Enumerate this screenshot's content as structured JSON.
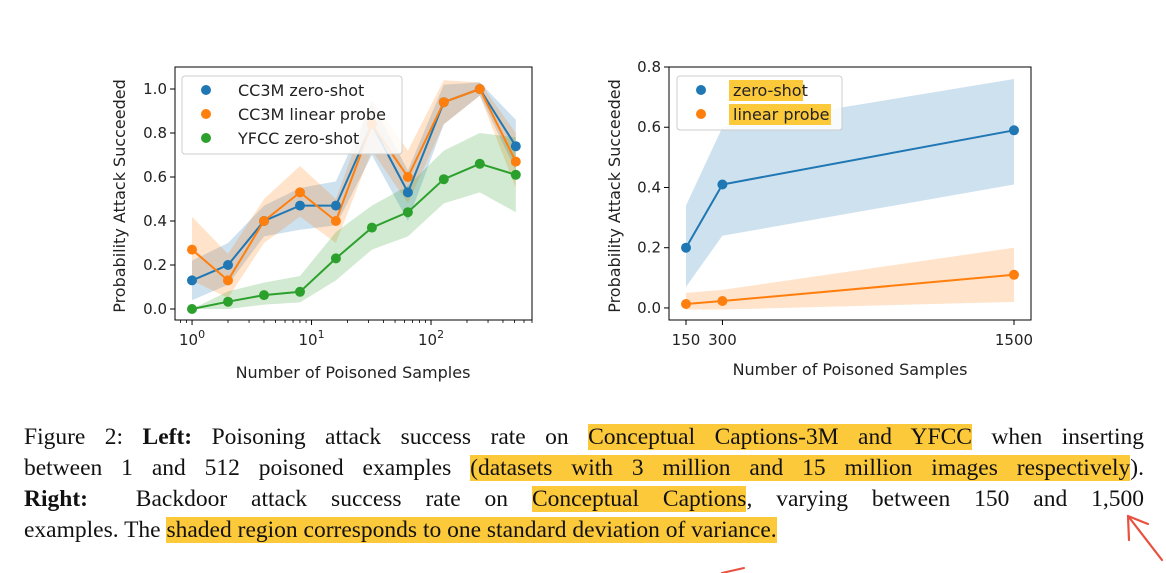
{
  "chart_data": [
    {
      "type": "line",
      "xscale": "log",
      "xlabel": "Number of Poisoned Samples",
      "ylabel": "Probability Attack Succeeded",
      "xlim": [
        0.72,
        700
      ],
      "ylim": [
        -0.05,
        1.1
      ],
      "yticks": [
        0.0,
        0.2,
        0.4,
        0.6,
        0.8,
        1.0
      ],
      "ytick_labels": [
        "0.0",
        "0.2",
        "0.4",
        "0.6",
        "0.8",
        "1.0"
      ],
      "xticks": [
        1,
        10,
        100
      ],
      "xtick_labels": [
        {
          "base": "10",
          "exp": "0"
        },
        {
          "base": "10",
          "exp": "1"
        },
        {
          "base": "10",
          "exp": "2"
        }
      ],
      "legend": "upper-left",
      "grid": false,
      "x": [
        1,
        2,
        4,
        8,
        16,
        32,
        64,
        128,
        256,
        512
      ],
      "series": [
        {
          "name": "CC3M zero-shot",
          "color": "#1f77b4",
          "values": [
            0.13,
            0.2,
            0.4,
            0.47,
            0.47,
            0.84,
            0.53,
            0.94,
            1.0,
            0.74
          ],
          "lower": [
            0.04,
            0.11,
            0.33,
            0.36,
            0.38,
            0.7,
            0.4,
            0.84,
            0.97,
            0.63
          ],
          "upper": [
            0.22,
            0.3,
            0.47,
            0.55,
            0.58,
            0.94,
            0.63,
            1.02,
            1.03,
            0.86
          ]
        },
        {
          "name": "CC3M linear probe",
          "color": "#ff7f0e",
          "values": [
            0.27,
            0.13,
            0.4,
            0.53,
            0.4,
            0.84,
            0.6,
            0.94,
            1.0,
            0.67
          ],
          "lower": [
            0.13,
            0.05,
            0.3,
            0.42,
            0.3,
            0.72,
            0.48,
            0.84,
            0.97,
            0.55
          ],
          "upper": [
            0.42,
            0.25,
            0.5,
            0.65,
            0.5,
            0.95,
            0.72,
            1.04,
            1.03,
            0.8
          ]
        },
        {
          "name": "YFCC zero-shot",
          "color": "#2ca02c",
          "values": [
            0.0,
            0.033,
            0.063,
            0.078,
            0.23,
            0.37,
            0.44,
            0.59,
            0.66,
            0.61
          ],
          "lower": [
            0.0,
            0.0,
            0.02,
            0.03,
            0.13,
            0.27,
            0.33,
            0.48,
            0.53,
            0.44
          ],
          "upper": [
            0.0,
            0.08,
            0.12,
            0.15,
            0.35,
            0.47,
            0.56,
            0.72,
            0.8,
            0.78
          ]
        }
      ]
    },
    {
      "type": "line",
      "xscale": "linear",
      "xlabel": "Number of Poisoned Samples",
      "ylabel": "Probability Attack Succeeded",
      "xlim": [
        80,
        1570
      ],
      "ylim": [
        -0.04,
        0.8
      ],
      "yticks": [
        0.0,
        0.2,
        0.4,
        0.6,
        0.8
      ],
      "ytick_labels": [
        "0.0",
        "0.2",
        "0.4",
        "0.6",
        "0.8"
      ],
      "xticks": [
        150,
        300,
        1500
      ],
      "xtick_labels": [
        "150",
        "300",
        "1500"
      ],
      "legend": "upper-left",
      "grid": false,
      "x": [
        150,
        300,
        1500
      ],
      "series": [
        {
          "name": "zero-shot",
          "color": "#1f77b4",
          "values": [
            0.2,
            0.41,
            0.59
          ],
          "lower": [
            0.07,
            0.24,
            0.41
          ],
          "upper": [
            0.34,
            0.6,
            0.76
          ]
        },
        {
          "name": "linear probe",
          "color": "#ff7f0e",
          "values": [
            0.013,
            0.023,
            0.11
          ],
          "lower": [
            -0.005,
            -0.005,
            0.02
          ],
          "upper": [
            0.05,
            0.06,
            0.2
          ]
        }
      ]
    }
  ],
  "caption": {
    "fig_label": "Figure 2: ",
    "left_label": "Left:",
    "line1_a": " Poisoning attack success rate on ",
    "line1_hl": "Conceptual Captions-3M and YFCC",
    "line1_b": " when inserting",
    "line2_a": "between 1 and 512 poisoned examples ",
    "line2_hl": "(datasets with 3 million and 15 million images respectively",
    "line2_b": ").",
    "right_label": "Right:",
    "line3_a": "  Backdoor attack success rate on ",
    "line3_hl": "Conceptual Captions",
    "line3_b": ", varying between 150 and 1,500",
    "line4_a": "examples. The ",
    "line4_hl": "shaded region corresponds to one standard deviation of variance."
  },
  "highlight_color": "#fcc93a",
  "annotation_color": "#e8513f"
}
